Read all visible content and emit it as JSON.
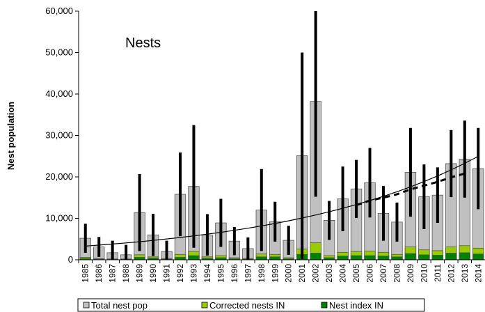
{
  "chart_data": {
    "type": "bar",
    "annotation": "Nests",
    "y_axis_label": "Nest population",
    "categories": [
      "1985",
      "1986",
      "1987",
      "1988",
      "1989",
      "1990",
      "1991",
      "1992",
      "1993",
      "1994",
      "1995",
      "1996",
      "1997",
      "1998",
      "1999",
      "2000",
      "2001",
      "2002",
      "2003",
      "2004",
      "2005",
      "2006",
      "2007",
      "2008",
      "2009",
      "2010",
      "2011",
      "2012",
      "2013",
      "2014"
    ],
    "series": [
      {
        "name": "Total nest pop",
        "color": "#c0c0c0",
        "values": [
          5200,
          3100,
          1700,
          1200,
          11400,
          6000,
          2000,
          15800,
          17700,
          6000,
          8900,
          4500,
          2700,
          12000,
          9200,
          4700,
          25100,
          38200,
          9500,
          14700,
          17100,
          18600,
          11200,
          9100,
          21100,
          15200,
          15600,
          23200,
          24300,
          22000
        ],
        "errors": [
          3500,
          2400,
          2900,
          2400,
          9300,
          5100,
          2600,
          10100,
          14800,
          5000,
          5800,
          3400,
          2700,
          9900,
          4800,
          3500,
          24900,
          23000,
          4700,
          7800,
          7000,
          8400,
          6600,
          4700,
          10700,
          7800,
          6700,
          8100,
          9300,
          9800
        ]
      },
      {
        "name": "Corrected nests IN",
        "color": "#99cc00",
        "values": [
          600,
          300,
          200,
          200,
          1200,
          700,
          300,
          1300,
          2000,
          700,
          1000,
          500,
          300,
          1400,
          1300,
          500,
          2600,
          4100,
          1000,
          1800,
          2000,
          2100,
          1800,
          1300,
          3100,
          2400,
          2200,
          3100,
          3400,
          2800
        ]
      },
      {
        "name": "Nest index IN",
        "color": "#008000",
        "values": [
          300,
          150,
          100,
          100,
          600,
          400,
          150,
          600,
          1000,
          350,
          500,
          250,
          150,
          700,
          700,
          250,
          1300,
          1600,
          500,
          900,
          1000,
          1000,
          900,
          700,
          1500,
          1200,
          1100,
          1600,
          1700,
          1400
        ]
      }
    ],
    "trend_line": {
      "values": [
        3300,
        3540,
        3790,
        4070,
        4360,
        4680,
        5020,
        5380,
        5770,
        6180,
        6630,
        7110,
        7620,
        8170,
        8760,
        9400,
        10080,
        10800,
        11580,
        12420,
        13320,
        14280,
        15310,
        16420,
        17600,
        18870,
        20240,
        21700,
        23270,
        24950
      ]
    },
    "dashed_line": {
      "values": [
        null,
        null,
        null,
        null,
        null,
        null,
        null,
        null,
        null,
        null,
        null,
        null,
        null,
        null,
        null,
        null,
        null,
        null,
        null,
        null,
        13200,
        14300,
        15000,
        15800,
        17000,
        17900,
        18800,
        19900,
        20800,
        null
      ]
    },
    "ylim": [
      0,
      60000
    ],
    "yticks": [
      0,
      {
        "value": 10000,
        "label": "10,000"
      },
      {
        "value": 20000,
        "label": "20,000"
      },
      {
        "value": 30000,
        "label": "30,000"
      },
      {
        "value": 40000,
        "label": "40,000"
      },
      {
        "value": 50000,
        "label": "50,000"
      },
      {
        "value": 60000,
        "label": "60,000"
      }
    ],
    "legend": "bottom"
  }
}
